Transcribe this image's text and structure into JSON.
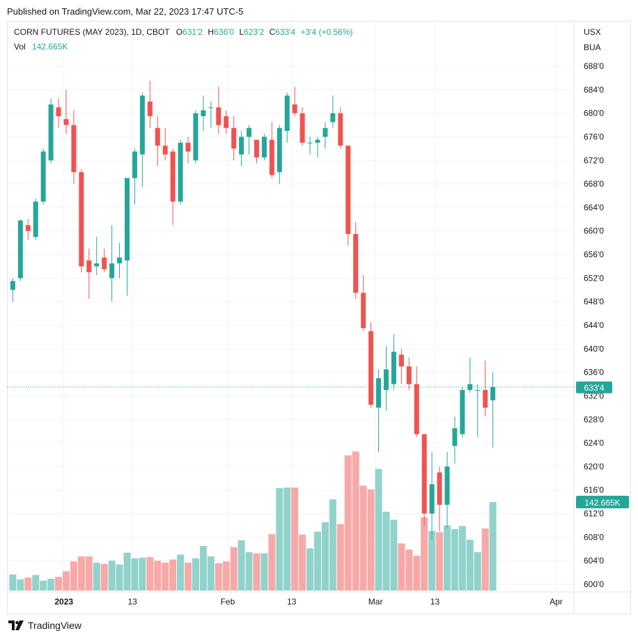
{
  "published": "Published on TradingView.com, Mar 22, 2023 17:47 UTC-5",
  "legend": {
    "symbol": "CORN FUTURES (MAY 2023), 1D, CBOT",
    "o_label": "O",
    "o_value": "631'2",
    "h_label": "H",
    "h_value": "636'0",
    "l_label": "L",
    "l_value": "623'2",
    "c_label": "C",
    "c_value": "633'4",
    "change": "+3'4 (+0.56%)",
    "vol_label": "Vol",
    "vol_value": "142.665K"
  },
  "currency": "USX",
  "unit": "BUA",
  "footer": {
    "brand": "TradingView"
  },
  "colors": {
    "up": "#26a69a",
    "down": "#ef5350",
    "up_vol": "#92d2cc",
    "down_vol": "#f7a9a7",
    "grid": "#f0f3fa",
    "text": "#131722"
  },
  "chart_data": {
    "type": "candlestick",
    "price_axis_labels": [
      "688'0",
      "684'0",
      "680'0",
      "676'0",
      "672'0",
      "668'0",
      "664'0",
      "660'0",
      "656'0",
      "652'0",
      "648'0",
      "644'0",
      "640'0",
      "636'0",
      "632'0",
      "628'0",
      "624'0",
      "620'0",
      "616'0",
      "612'0",
      "608'0",
      "604'0",
      "600'0"
    ],
    "price_axis_values": [
      688,
      684,
      680,
      676,
      672,
      668,
      664,
      660,
      656,
      652,
      648,
      644,
      640,
      636,
      632,
      628,
      624,
      620,
      616,
      612,
      608,
      604,
      600
    ],
    "time_axis_labels": [
      {
        "label": "2023",
        "bar": 6.7,
        "bold": true
      },
      {
        "label": "13",
        "bar": 15.7
      },
      {
        "label": "Feb",
        "bar": 28.2
      },
      {
        "label": "13",
        "bar": 36.6
      },
      {
        "label": "Mar",
        "bar": 47.6
      },
      {
        "label": "13",
        "bar": 55.4
      },
      {
        "label": "Apr",
        "bar": 71.3
      }
    ],
    "last_price_label": "633'4",
    "last_price": 633.5,
    "last_volume_label": "142.665K",
    "last_volume": 142665,
    "volume_scale_max": 230000,
    "bars": [
      {
        "o": 650.0,
        "h": 652.0,
        "l": 648.0,
        "c": 651.5,
        "v": 26000
      },
      {
        "o": 652.0,
        "h": 662.0,
        "l": 651.5,
        "c": 661.8,
        "v": 18000
      },
      {
        "o": 661.0,
        "h": 662.0,
        "l": 658.5,
        "c": 660.0,
        "v": 21000
      },
      {
        "o": 659.0,
        "h": 665.5,
        "l": 658.5,
        "c": 665.0,
        "v": 25000
      },
      {
        "o": 665.0,
        "h": 674.0,
        "l": 664.5,
        "c": 673.5,
        "v": 16000
      },
      {
        "o": 672.0,
        "h": 682.5,
        "l": 671.5,
        "c": 681.5,
        "v": 19000
      },
      {
        "o": 681.0,
        "h": 682.5,
        "l": 677.5,
        "c": 679.5,
        "v": 22000
      },
      {
        "o": 679.0,
        "h": 684.0,
        "l": 676.5,
        "c": 678.0,
        "v": 31000
      },
      {
        "o": 678.0,
        "h": 680.5,
        "l": 668.0,
        "c": 670.0,
        "v": 47000
      },
      {
        "o": 670.0,
        "h": 670.5,
        "l": 653.0,
        "c": 654.0,
        "v": 55000
      },
      {
        "o": 655.0,
        "h": 657.0,
        "l": 648.5,
        "c": 653.0,
        "v": 55000
      },
      {
        "o": 654.0,
        "h": 659.0,
        "l": 652.5,
        "c": 654.5,
        "v": 45000
      },
      {
        "o": 655.5,
        "h": 657.0,
        "l": 653.0,
        "c": 653.5,
        "v": 43000
      },
      {
        "o": 652.0,
        "h": 661.0,
        "l": 648.0,
        "c": 654.5,
        "v": 48000
      },
      {
        "o": 654.5,
        "h": 658.0,
        "l": 652.0,
        "c": 655.5,
        "v": 42000
      },
      {
        "o": 655.0,
        "h": 669.0,
        "l": 649.0,
        "c": 669.0,
        "v": 61000
      },
      {
        "o": 669.0,
        "h": 674.0,
        "l": 664.5,
        "c": 673.5,
        "v": 52000
      },
      {
        "o": 673.0,
        "h": 683.5,
        "l": 667.5,
        "c": 683.0,
        "v": 53000
      },
      {
        "o": 682.0,
        "h": 685.5,
        "l": 677.5,
        "c": 679.5,
        "v": 54000
      },
      {
        "o": 677.5,
        "h": 679.5,
        "l": 671.0,
        "c": 674.5,
        "v": 48000
      },
      {
        "o": 674.5,
        "h": 677.5,
        "l": 672.0,
        "c": 673.0,
        "v": 45000
      },
      {
        "o": 673.5,
        "h": 674.0,
        "l": 661.0,
        "c": 665.0,
        "v": 50000
      },
      {
        "o": 665.0,
        "h": 675.5,
        "l": 664.5,
        "c": 675.0,
        "v": 58000
      },
      {
        "o": 675.0,
        "h": 676.0,
        "l": 671.5,
        "c": 673.5,
        "v": 45000
      },
      {
        "o": 672.0,
        "h": 680.5,
        "l": 671.5,
        "c": 680.0,
        "v": 52000
      },
      {
        "o": 679.5,
        "h": 683.0,
        "l": 677.0,
        "c": 680.5,
        "v": 72000
      },
      {
        "o": 681.0,
        "h": 682.0,
        "l": 677.5,
        "c": 681.0,
        "v": 55000
      },
      {
        "o": 681.0,
        "h": 684.5,
        "l": 676.5,
        "c": 678.0,
        "v": 44000
      },
      {
        "o": 679.5,
        "h": 680.5,
        "l": 676.5,
        "c": 677.5,
        "v": 47000
      },
      {
        "o": 677.5,
        "h": 679.5,
        "l": 672.0,
        "c": 674.0,
        "v": 70000
      },
      {
        "o": 673.0,
        "h": 677.0,
        "l": 671.0,
        "c": 676.0,
        "v": 81000
      },
      {
        "o": 676.0,
        "h": 678.0,
        "l": 673.0,
        "c": 677.5,
        "v": 62000
      },
      {
        "o": 675.5,
        "h": 675.5,
        "l": 671.5,
        "c": 672.5,
        "v": 60000
      },
      {
        "o": 672.5,
        "h": 676.5,
        "l": 672.0,
        "c": 676.0,
        "v": 60000
      },
      {
        "o": 675.5,
        "h": 678.5,
        "l": 669.0,
        "c": 669.5,
        "v": 91000
      },
      {
        "o": 670.0,
        "h": 678.0,
        "l": 668.0,
        "c": 677.5,
        "v": 165000
      },
      {
        "o": 677.0,
        "h": 683.5,
        "l": 675.0,
        "c": 683.0,
        "v": 166000
      },
      {
        "o": 681.5,
        "h": 684.5,
        "l": 679.5,
        "c": 680.0,
        "v": 166000
      },
      {
        "o": 680.0,
        "h": 681.0,
        "l": 674.5,
        "c": 675.0,
        "v": 90000
      },
      {
        "o": 675.0,
        "h": 676.0,
        "l": 673.0,
        "c": 675.0,
        "v": 68000
      },
      {
        "o": 675.0,
        "h": 676.0,
        "l": 672.5,
        "c": 675.5,
        "v": 95000
      },
      {
        "o": 676.0,
        "h": 678.5,
        "l": 674.0,
        "c": 677.5,
        "v": 110000
      },
      {
        "o": 678.5,
        "h": 683.0,
        "l": 677.5,
        "c": 680.0,
        "v": 147000
      },
      {
        "o": 680.0,
        "h": 681.0,
        "l": 674.0,
        "c": 674.5,
        "v": 107000
      },
      {
        "o": 674.5,
        "h": 674.5,
        "l": 657.5,
        "c": 659.5,
        "v": 218000
      },
      {
        "o": 659.5,
        "h": 661.5,
        "l": 648.5,
        "c": 649.5,
        "v": 224000
      },
      {
        "o": 649.5,
        "h": 652.5,
        "l": 643.0,
        "c": 643.5,
        "v": 169000
      },
      {
        "o": 643.0,
        "h": 644.5,
        "l": 630.0,
        "c": 630.5,
        "v": 163000
      },
      {
        "o": 630.0,
        "h": 636.5,
        "l": 622.5,
        "c": 635.0,
        "v": 196000
      },
      {
        "o": 633.0,
        "h": 640.5,
        "l": 629.5,
        "c": 636.5,
        "v": 127000
      },
      {
        "o": 634.0,
        "h": 642.5,
        "l": 633.0,
        "c": 639.5,
        "v": 114000
      },
      {
        "o": 639.0,
        "h": 640.0,
        "l": 634.0,
        "c": 637.0,
        "v": 76000
      },
      {
        "o": 637.0,
        "h": 638.5,
        "l": 633.0,
        "c": 634.0,
        "v": 66000
      },
      {
        "o": 634.0,
        "h": 637.0,
        "l": 625.0,
        "c": 625.5,
        "v": 56000
      },
      {
        "o": 625.5,
        "h": 625.5,
        "l": 610.0,
        "c": 612.0,
        "v": 118000
      },
      {
        "o": 612.0,
        "h": 622.5,
        "l": 607.5,
        "c": 617.0,
        "v": 96000
      },
      {
        "o": 619.0,
        "h": 620.0,
        "l": 609.0,
        "c": 613.5,
        "v": 94000
      },
      {
        "o": 613.5,
        "h": 622.5,
        "l": 609.5,
        "c": 620.0,
        "v": 105000
      },
      {
        "o": 623.5,
        "h": 628.5,
        "l": 620.5,
        "c": 626.5,
        "v": 99000
      },
      {
        "o": 625.5,
        "h": 633.5,
        "l": 625.0,
        "c": 633.0,
        "v": 104000
      },
      {
        "o": 633.0,
        "h": 638.5,
        "l": 632.5,
        "c": 634.0,
        "v": 82000
      },
      {
        "o": 633.0,
        "h": 634.0,
        "l": 625.0,
        "c": 633.0,
        "v": 62000
      },
      {
        "o": 633.0,
        "h": 638.0,
        "l": 628.5,
        "c": 630.0,
        "v": 100000
      },
      {
        "o": 631.25,
        "h": 636.0,
        "l": 623.25,
        "c": 633.5,
        "v": 142665
      }
    ]
  }
}
